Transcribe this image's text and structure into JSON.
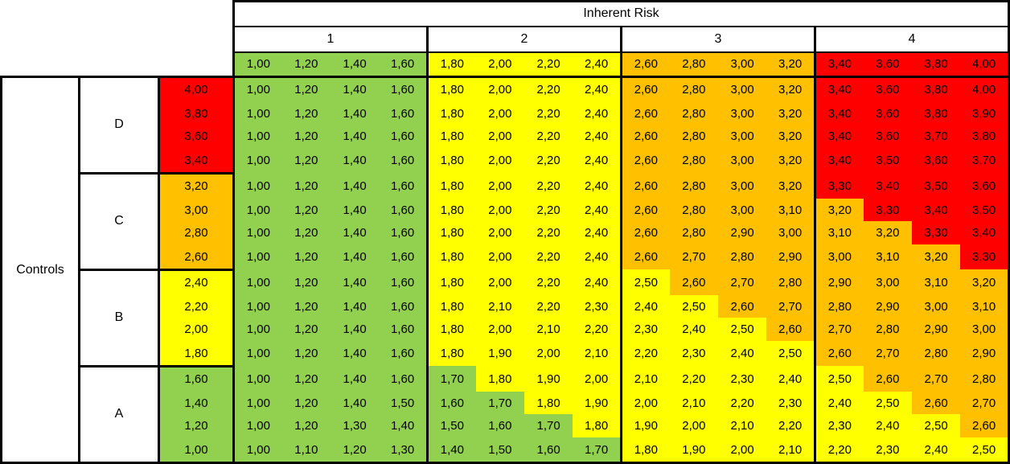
{
  "chart_data": {
    "type": "heatmap",
    "title": "Inherent Risk",
    "row_axis_label": "Controls",
    "column_groups": [
      {
        "label": "1",
        "columns": [
          "1,00",
          "1,20",
          "1,40",
          "1,60"
        ]
      },
      {
        "label": "2",
        "columns": [
          "1,80",
          "2,00",
          "2,20",
          "2,40"
        ]
      },
      {
        "label": "3",
        "columns": [
          "2,60",
          "2,80",
          "3,00",
          "3,20"
        ]
      },
      {
        "label": "4",
        "columns": [
          "3,40",
          "3,60",
          "3,80",
          "4,00"
        ]
      }
    ],
    "row_groups": [
      {
        "label": "D",
        "rows": [
          "4,00",
          "3,80",
          "3,60",
          "3,40"
        ]
      },
      {
        "label": "C",
        "rows": [
          "3,20",
          "3,00",
          "2,80",
          "2,60"
        ]
      },
      {
        "label": "B",
        "rows": [
          "2,40",
          "2,20",
          "2,00",
          "1,80"
        ]
      },
      {
        "label": "A",
        "rows": [
          "1,60",
          "1,40",
          "1,20",
          "1,00"
        ]
      }
    ],
    "cells": [
      [
        "1,00",
        "1,20",
        "1,40",
        "1,60",
        "1,80",
        "2,00",
        "2,20",
        "2,40",
        "2,60",
        "2,80",
        "3,00",
        "3,20",
        "3,40",
        "3,60",
        "3,80",
        "4,00"
      ],
      [
        "1,00",
        "1,20",
        "1,40",
        "1,60",
        "1,80",
        "2,00",
        "2,20",
        "2,40",
        "2,60",
        "2,80",
        "3,00",
        "3,20",
        "3,40",
        "3,60",
        "3,80",
        "3,90"
      ],
      [
        "1,00",
        "1,20",
        "1,40",
        "1,60",
        "1,80",
        "2,00",
        "2,20",
        "2,40",
        "2,60",
        "2,80",
        "3,00",
        "3,20",
        "3,40",
        "3,60",
        "3,70",
        "3,80"
      ],
      [
        "1,00",
        "1,20",
        "1,40",
        "1,60",
        "1,80",
        "2,00",
        "2,20",
        "2,40",
        "2,60",
        "2,80",
        "3,00",
        "3,20",
        "3,40",
        "3,50",
        "3,60",
        "3,70"
      ],
      [
        "1,00",
        "1,20",
        "1,40",
        "1,60",
        "1,80",
        "2,00",
        "2,20",
        "2,40",
        "2,60",
        "2,80",
        "3,00",
        "3,20",
        "3,30",
        "3,40",
        "3,50",
        "3,60"
      ],
      [
        "1,00",
        "1,20",
        "1,40",
        "1,60",
        "1,80",
        "2,00",
        "2,20",
        "2,40",
        "2,60",
        "2,80",
        "3,00",
        "3,10",
        "3,20",
        "3,30",
        "3,40",
        "3,50"
      ],
      [
        "1,00",
        "1,20",
        "1,40",
        "1,60",
        "1,80",
        "2,00",
        "2,20",
        "2,40",
        "2,60",
        "2,80",
        "2,90",
        "3,00",
        "3,10",
        "3,20",
        "3,30",
        "3,40"
      ],
      [
        "1,00",
        "1,20",
        "1,40",
        "1,60",
        "1,80",
        "2,00",
        "2,20",
        "2,40",
        "2,60",
        "2,70",
        "2,80",
        "2,90",
        "3,00",
        "3,10",
        "3,20",
        "3,30"
      ],
      [
        "1,00",
        "1,20",
        "1,40",
        "1,60",
        "1,80",
        "2,00",
        "2,20",
        "2,40",
        "2,50",
        "2,60",
        "2,70",
        "2,80",
        "2,90",
        "3,00",
        "3,10",
        "3,20"
      ],
      [
        "1,00",
        "1,20",
        "1,40",
        "1,60",
        "1,80",
        "2,10",
        "2,20",
        "2,30",
        "2,40",
        "2,50",
        "2,60",
        "2,70",
        "2,80",
        "2,90",
        "3,00",
        "3,10"
      ],
      [
        "1,00",
        "1,20",
        "1,40",
        "1,60",
        "1,80",
        "2,00",
        "2,10",
        "2,20",
        "2,30",
        "2,40",
        "2,50",
        "2,60",
        "2,70",
        "2,80",
        "2,90",
        "3,00"
      ],
      [
        "1,00",
        "1,20",
        "1,40",
        "1,60",
        "1,80",
        "1,90",
        "2,00",
        "2,10",
        "2,20",
        "2,30",
        "2,40",
        "2,50",
        "2,60",
        "2,70",
        "2,80",
        "2,90"
      ],
      [
        "1,00",
        "1,20",
        "1,40",
        "1,60",
        "1,70",
        "1,80",
        "1,90",
        "2,00",
        "2,10",
        "2,20",
        "2,30",
        "2,40",
        "2,50",
        "2,60",
        "2,70",
        "2,80"
      ],
      [
        "1,00",
        "1,20",
        "1,40",
        "1,50",
        "1,60",
        "1,70",
        "1,80",
        "1,90",
        "2,00",
        "2,10",
        "2,20",
        "2,30",
        "2,40",
        "2,50",
        "2,60",
        "2,70"
      ],
      [
        "1,00",
        "1,20",
        "1,30",
        "1,40",
        "1,50",
        "1,60",
        "1,70",
        "1,80",
        "1,90",
        "2,00",
        "2,10",
        "2,20",
        "2,30",
        "2,40",
        "2,50",
        "2,60"
      ],
      [
        "1,00",
        "1,10",
        "1,20",
        "1,30",
        "1,40",
        "1,50",
        "1,60",
        "1,70",
        "1,80",
        "1,90",
        "2,00",
        "2,10",
        "2,20",
        "2,30",
        "2,40",
        "2,50"
      ]
    ],
    "color_scale": [
      {
        "name": "green",
        "hex": "#92D050",
        "max": 1.75
      },
      {
        "name": "yellow",
        "hex": "#FFFF00",
        "max": 2.55
      },
      {
        "name": "orange",
        "hex": "#FFC000",
        "max": 3.25
      },
      {
        "name": "red",
        "hex": "#FF0000",
        "max": 99
      }
    ],
    "layout": {
      "grid": "no inner gridlines in body; thick black borders around column/row groups",
      "decimal_separator": ","
    }
  }
}
